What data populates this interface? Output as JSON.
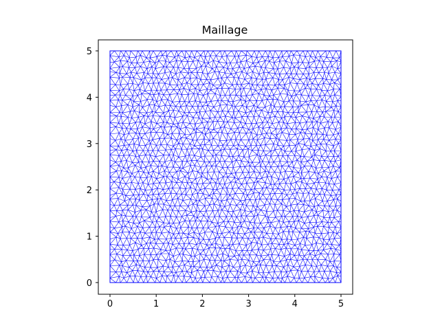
{
  "title": "Maillage",
  "chart_data": {
    "type": "mesh",
    "title": "Maillage",
    "xlim": [
      -0.25,
      5.25
    ],
    "ylim": [
      -0.25,
      5.25
    ],
    "domain": {
      "x": [
        0,
        5
      ],
      "y": [
        0,
        5
      ]
    },
    "x_ticks": [
      0,
      1,
      2,
      3,
      4,
      5
    ],
    "y_ticks": [
      0,
      1,
      2,
      3,
      4,
      5
    ],
    "x_tick_labels": [
      "0",
      "1",
      "2",
      "3",
      "4",
      "5"
    ],
    "y_tick_labels": [
      "0",
      "1",
      "2",
      "3",
      "4",
      "5"
    ],
    "mesh_color": "#0000ff",
    "mesh_style": "unstructured triangular mesh",
    "aspect": "equal",
    "grid": false
  }
}
